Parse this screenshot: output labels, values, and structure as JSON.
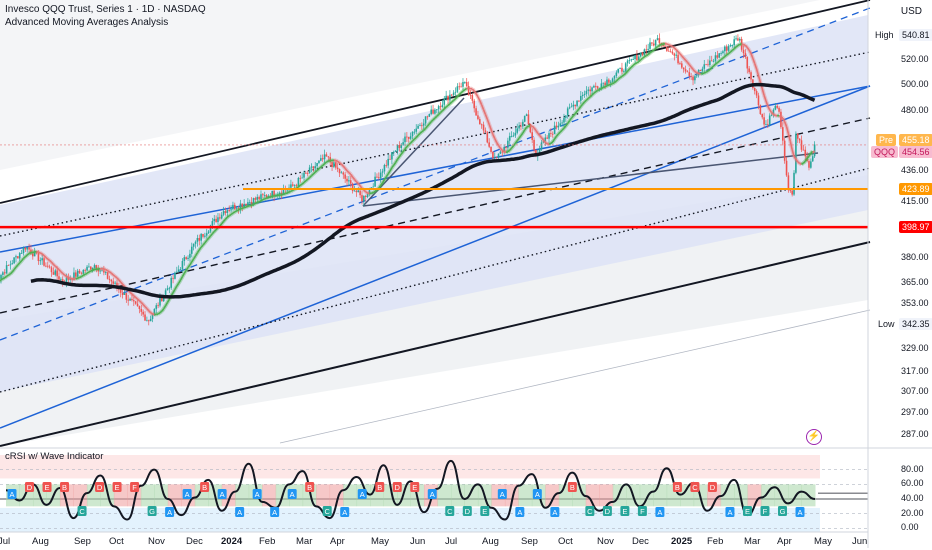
{
  "header": {
    "title": "Invesco QQQ Trust, Series 1 · 1D · NASDAQ",
    "subtitle": "Advanced Moving Averages Analysis",
    "currency": "USD"
  },
  "indicator": {
    "title": "cRSI w/ Wave Indicator"
  },
  "colors": {
    "bull_candle": "#26a69a",
    "bear_candle": "#ef5350",
    "ma_fast_up": "#4caf50",
    "ma_fast_down": "#e57373",
    "ma_slow": "#131722",
    "channel_blue": "#1e63d6",
    "support": "#ff9800",
    "resistance": "#ff0000",
    "pre_tag": "#ffb74d",
    "qqq_tag": "#f8bbd0"
  },
  "chart_data": [
    {
      "type": "candlestick",
      "symbol": "QQQ",
      "x_axis_ticks": [
        "Jul",
        "Aug",
        "Sep",
        "Oct",
        "Nov",
        "Dec",
        "2024",
        "Feb",
        "Mar",
        "Apr",
        "May",
        "Jun",
        "Jul",
        "Aug",
        "Sep",
        "Oct",
        "Nov",
        "Dec",
        "2025",
        "Feb",
        "Mar",
        "Apr",
        "May",
        "Jun"
      ],
      "y_axis_scale": "log",
      "y_axis_ticks": [
        287.0,
        297.0,
        307.0,
        317.0,
        329.0,
        342.35,
        353.0,
        365.0,
        380.0,
        398.97,
        415.0,
        423.89,
        436.0,
        454.56,
        455.18,
        480.0,
        500.0,
        520.0,
        540.81
      ],
      "ylim": [
        282,
        572
      ],
      "high_label": "High",
      "high_value": 540.81,
      "low_label": "Low",
      "low_value": 342.35,
      "pre_label": "Pre",
      "pre_value": 455.18,
      "last_label": "QQQ",
      "last_value": 454.56,
      "support_level": 423.89,
      "resistance_level": 398.97,
      "close_series": {
        "dates": [
          "2023-06-20",
          "2023-07-19",
          "2023-08-18",
          "2023-09-12",
          "2023-10-26",
          "2023-12-01",
          "2023-12-28",
          "2024-02-20",
          "2024-03-21",
          "2024-04-19",
          "2024-05-15",
          "2024-06-14",
          "2024-07-10",
          "2024-08-05",
          "2024-08-30",
          "2024-09-06",
          "2024-10-15",
          "2024-11-06",
          "2024-12-16",
          "2025-01-13",
          "2025-02-19",
          "2025-03-13",
          "2025-03-25",
          "2025-04-04",
          "2025-04-08",
          "2025-04-09",
          "2025-04-21",
          "2025-04-25"
        ],
        "close": [
          365,
          387,
          366,
          376,
          344,
          388,
          410,
          425,
          446,
          417,
          452,
          480,
          502,
          443,
          476,
          448,
          494,
          505,
          538,
          506,
          539,
          468,
          485,
          422,
          418,
          465,
          438,
          455.18
        ]
      }
    },
    {
      "type": "line",
      "title": "cRSI w/ Wave Indicator",
      "y_axis_ticks": [
        0.0,
        20.0,
        40.0,
        60.0,
        80.0
      ],
      "ylim": [
        -5,
        100
      ],
      "band_upper": 68,
      "band_lower": 28,
      "series": [
        {
          "values": [
            52,
            38,
            60,
            32,
            55,
            14,
            48,
            72,
            30,
            12,
            58,
            80,
            40,
            18,
            42,
            66,
            24,
            50,
            88,
            36,
            28,
            60,
            78,
            30,
            14,
            52,
            70,
            46,
            86,
            32,
            64,
            22,
            54,
            92,
            40,
            60,
            28,
            12,
            58,
            74,
            28,
            48,
            76,
            44,
            24,
            36,
            60,
            30,
            50,
            82,
            46,
            62,
            24,
            44,
            66,
            18,
            42,
            56,
            34,
            50,
            40
          ]
        }
      ],
      "signal_badges": [
        {
          "text": "A",
          "kind": "wave"
        },
        {
          "text": "D",
          "kind": "bear"
        },
        {
          "text": "E",
          "kind": "bear"
        },
        {
          "text": "B",
          "kind": "bear"
        },
        {
          "text": "C",
          "kind": "bull"
        },
        {
          "text": "D",
          "kind": "bear"
        },
        {
          "text": "E",
          "kind": "bear"
        },
        {
          "text": "F",
          "kind": "bear"
        },
        {
          "text": "G",
          "kind": "bull"
        },
        {
          "text": "A",
          "kind": "wave"
        },
        {
          "text": "A",
          "kind": "wave"
        },
        {
          "text": "B",
          "kind": "bear"
        },
        {
          "text": "A",
          "kind": "wave"
        },
        {
          "text": "A",
          "kind": "wave"
        },
        {
          "text": "A",
          "kind": "wave"
        },
        {
          "text": "A",
          "kind": "wave"
        },
        {
          "text": "A",
          "kind": "wave"
        },
        {
          "text": "B",
          "kind": "bear"
        },
        {
          "text": "C",
          "kind": "bull"
        },
        {
          "text": "A",
          "kind": "wave"
        },
        {
          "text": "A",
          "kind": "wave"
        },
        {
          "text": "B",
          "kind": "bear"
        },
        {
          "text": "D",
          "kind": "bear"
        },
        {
          "text": "E",
          "kind": "bear"
        },
        {
          "text": "A",
          "kind": "wave"
        },
        {
          "text": "C",
          "kind": "bull"
        },
        {
          "text": "D",
          "kind": "bull"
        },
        {
          "text": "E",
          "kind": "bull"
        },
        {
          "text": "A",
          "kind": "wave"
        },
        {
          "text": "A",
          "kind": "wave"
        },
        {
          "text": "A",
          "kind": "wave"
        },
        {
          "text": "A",
          "kind": "wave"
        },
        {
          "text": "B",
          "kind": "bear"
        },
        {
          "text": "C",
          "kind": "bull"
        },
        {
          "text": "D",
          "kind": "bull"
        },
        {
          "text": "E",
          "kind": "bull"
        },
        {
          "text": "F",
          "kind": "bull"
        },
        {
          "text": "A",
          "kind": "wave"
        },
        {
          "text": "B",
          "kind": "bear"
        },
        {
          "text": "C",
          "kind": "bear"
        },
        {
          "text": "D",
          "kind": "bear"
        },
        {
          "text": "A",
          "kind": "wave"
        },
        {
          "text": "E",
          "kind": "bull"
        },
        {
          "text": "F",
          "kind": "bull"
        },
        {
          "text": "G",
          "kind": "bull"
        },
        {
          "text": "A",
          "kind": "wave"
        }
      ]
    }
  ]
}
